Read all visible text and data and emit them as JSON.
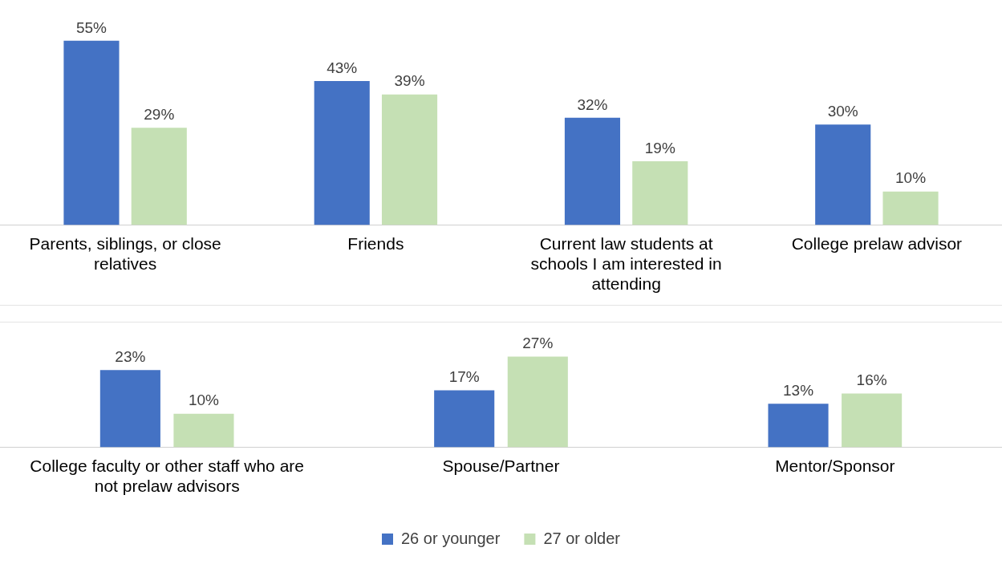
{
  "chart_data": [
    {
      "type": "bar",
      "categories": [
        "Parents, siblings, or close relatives",
        "Friends",
        "Current law students at schools I am interested in attending",
        "College prelaw advisor"
      ],
      "series": [
        {
          "color": "#4472c4",
          "values": [
            55,
            43,
            32,
            30
          ],
          "value_labels": [
            "55%",
            "43%",
            "32%",
            "30%"
          ]
        },
        {
          "color": "#c5e0b4",
          "values": [
            29,
            39,
            19,
            10
          ],
          "value_labels": [
            "29%",
            "39%",
            "19%",
            "10%"
          ]
        }
      ],
      "legend": false,
      "grid": false
    },
    {
      "type": "bar",
      "categories": [
        "College faculty or other staff who are not prelaw advisors",
        "Spouse/Partner",
        "Mentor/Sponsor"
      ],
      "series": [
        {
          "name": "26 or younger",
          "color": "#4472c4",
          "values": [
            23,
            17,
            13
          ],
          "value_labels": [
            "23%",
            "17%",
            "13%"
          ]
        },
        {
          "name": "27 or older",
          "color": "#c5e0b4",
          "values": [
            10,
            27,
            16
          ],
          "value_labels": [
            "10%",
            "27%",
            "16%"
          ]
        }
      ],
      "legend": "bottom",
      "grid": false
    }
  ]
}
